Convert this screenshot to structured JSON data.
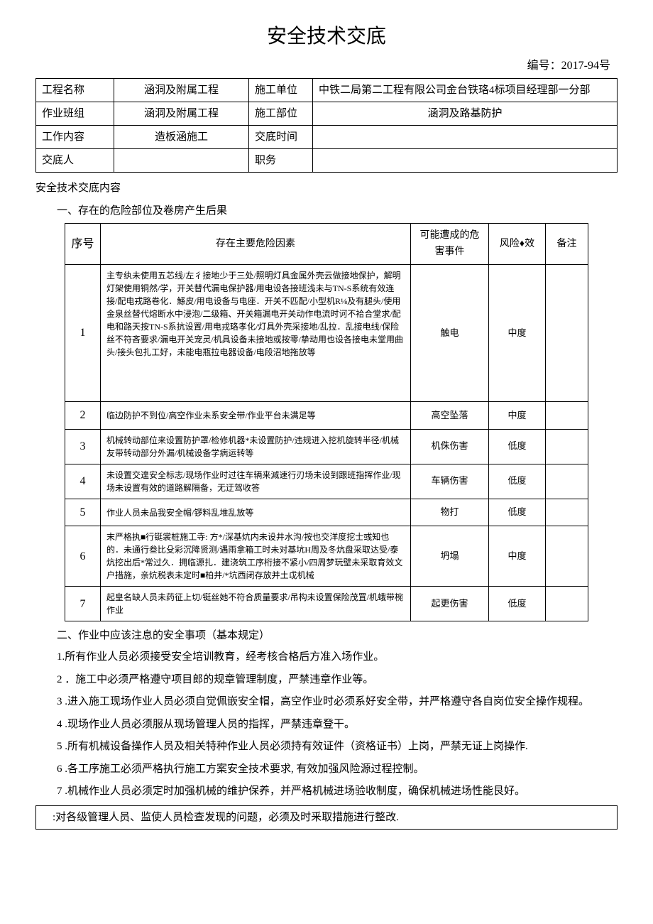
{
  "title": "安全技术交底",
  "doc_number": "编号：2017-94号",
  "header": {
    "project_name_label": "工程名称",
    "project_name": "涵洞及附属工程",
    "construction_unit_label": "施工单位",
    "construction_unit": "中铁二局第二工程有限公司金台铁珞4标项目经理部一分部",
    "team_label": "作业班组",
    "team": "涵洞及附属工程",
    "part_label": "施工部位",
    "part": "涵洞及路基防护",
    "content_label": "工作内容",
    "content": "造板涵施工",
    "time_label": "交底时间",
    "time": "",
    "presenter_label": "交底人",
    "presenter": "",
    "position_label": "职务",
    "position": ""
  },
  "section_title": "安全技术交底内容",
  "section1_header": "一、存在的危险部位及卷房产生后果",
  "risk_table": {
    "headers": {
      "seq": "序号",
      "factor": "存在主要危险因素",
      "event": "可能遭成的危害事件",
      "risk": "风险♦效",
      "note": "备注"
    },
    "rows": [
      {
        "seq": "1",
        "factor": "主专纨未使用五芯线/左彳接地少于三处/照明灯具金属外壳云做接地保护，解明灯架使用铜然/学，开关替代漏电保护器/用电设各接班浅未与TN-S系统有效连接/配电戎路卷化．鯀皮/用电设备与电座．开关不匹配/小型机R⅛及有腿头/使用金泉丝替代熔断水中浸泡/二级箱、开关箱漏电开关动作电流时诃不袷合堂求/配电和路天按TN-S系抗设置/用电戎珞孝化/灯具外壳采接地/乱拉．乱接电线/保险丝不符吝要求/漏电开关宠灵/机具设备未接地或按零/挚动用也设各接电未堂用曲头/接头包扎工好，未能电瓶拉电器设备/电段沼地拖放等",
        "event": "触电",
        "risk": "中度",
        "note": ""
      },
      {
        "seq": "2",
        "factor": "临边防护不到位/高空作业未系安全带/作业平台未满足等",
        "event": "高空坠落",
        "risk": "中度",
        "note": ""
      },
      {
        "seq": "3",
        "factor": "机械转动部位来设置防护罩/检修机器*未设置防护/违规进入挖机旋转半径/机械友带转动部分外漏/机械设备学病运转等",
        "event": "机侏伤害",
        "risk": "低度",
        "note": ""
      },
      {
        "seq": "4",
        "factor": "未设置交遑安全标志/现场作业时过往车辆来減速行刃场未设到跟班指挥作业/现场未设置有效的道路解隔备，无迂驾收答",
        "event": "车辆伤害",
        "risk": "低度",
        "note": ""
      },
      {
        "seq": "5",
        "factor": "作业人员未品我安全帽/锣料乱堆乱放等",
        "event": "物打",
        "risk": "低度",
        "note": ""
      },
      {
        "seq": "6",
        "factor": "末严格执■行铤裳桩施工寺: 方*/深基炕内未设井水沟/按也交洋度挖士彧知也的．未通行叁比殳彩沉降贤测/遇雨拿箱工时未对基坑H周及冬炕盘采取达受/泰炕挖出后*常过久．拥临源扎．建浇筑工序桁接不紧小/四周梦玩壁未采取育效文户措施，亲炕税表未定时■柏井/*坑西闭存放并土戉机械",
        "event": "坍塌",
        "risk": "中度",
        "note": ""
      },
      {
        "seq": "7",
        "factor": "起皇名缺人员未药征上切/铤丝她不符合质量要求/吊构未设置保险茂罝/机蛾带椀作业",
        "event": "起更伤害",
        "risk": "低度",
        "note": ""
      }
    ]
  },
  "section2_header": "二、作业中应该注息的安全事项（基本规定）",
  "safety_items": [
    "1.所有作业人员必须接受安全培训教育，经考核合格后方准入场作业。",
    "2 ．施工中必须严格遵守项目郎的规章管理制度，严禁违章作业等。",
    "3 .进入施工现场作业人员必须自觉佩嵌安全帽，高空作业时必须系好安全带，并严格遵守各自岗位安全操作规程。",
    "4 .现场作业人员必须服从现场管理人员的指挥，严禁违章登干。",
    "5 .所有机械设备操作人员及相关特种作业人员必须持有效证件（资格证书）上岗，严禁无证上岗操作.",
    "6 .各工序施工必须严格执行施工方案安全技术要求, 有效加强风险源过程控制。",
    "7 .机械作业人员必须定时加强机械的维护保养，并严格机械进场验收制度，确保机械进场性能艮好。"
  ],
  "safety_footer": ":对各级管理人员、监使人员检查发现的问题，必须及时釆取措施进行整改."
}
